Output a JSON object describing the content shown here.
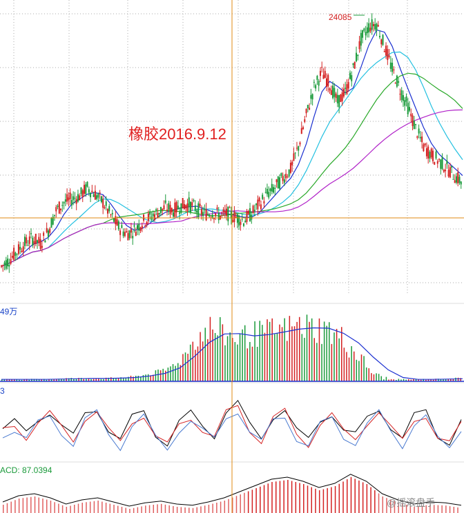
{
  "annotation": "橡胶2016.9.12",
  "peak_label": "24085",
  "volume_label": "49万",
  "osc_label": "3",
  "macd_label": "ACD: 87.0394",
  "watermark": "@摇滚盘手",
  "colors": {
    "up": "#d42020",
    "down": "#1a9a3a",
    "ma_fast": "#1a2fd0",
    "ma_mid": "#22c0e0",
    "ma_slow": "#28a828",
    "ma_long": "#b020c8",
    "crosshair": "#e08a10",
    "grid": "#aaaaaa"
  },
  "chart_data": [
    {
      "type": "candlestick",
      "title": "",
      "annotations": [
        "橡胶2016.9.12",
        "24085"
      ],
      "series": [
        {
          "name": "",
          "values": [
            9.2,
            9.6,
            10.1,
            10.6,
            10.9,
            10.6,
            11.4,
            12.6,
            13.1,
            13.3,
            13.5,
            14.0,
            13.6,
            13.1,
            12.3,
            11.6,
            11.2,
            11.4,
            11.9,
            12.2,
            12.5,
            12.8,
            12.6,
            12.9,
            13.0,
            12.7,
            12.4,
            12.5,
            12.3,
            12.4,
            12.2,
            12.0,
            12.4,
            13.0,
            13.6,
            14.0,
            14.6,
            15.1,
            16.5,
            18.4,
            20.1,
            21.0,
            20.3,
            19.2,
            19.8,
            21.2,
            23.0,
            23.8,
            24.0,
            22.6,
            21.2,
            20.0,
            18.9,
            17.6,
            16.5,
            16.0,
            15.6,
            15.2,
            14.7,
            14.3
          ]
        }
      ],
      "peak": 24085
    },
    {
      "type": "bar",
      "title": "",
      "annotations": [
        "49万"
      ],
      "series": [
        {
          "name": "",
          "values": [
            0.2,
            0.2,
            0.2,
            0.2,
            0.3,
            0.3,
            0.3,
            0.3,
            0.4,
            0.5,
            0.8,
            1.2,
            2.2,
            4.5,
            5.6,
            4.8,
            4.6,
            4.9,
            5.2,
            5.4,
            5.8,
            5.6,
            5.3,
            4.2,
            2.6,
            0.8,
            0.2,
            0.2,
            0.2,
            0.2,
            0.3,
            0.3
          ]
        }
      ]
    },
    {
      "type": "line",
      "title": "",
      "annotations": [
        "3"
      ],
      "series": [
        {
          "name": "",
          "values": [
            48,
            52,
            45,
            55,
            60,
            50,
            42,
            58,
            62,
            48,
            40,
            55,
            60,
            45,
            38,
            52,
            58,
            50,
            44,
            60,
            65,
            50,
            42,
            57,
            61,
            46,
            40,
            54,
            59,
            47,
            43,
            55,
            62,
            50,
            41,
            56,
            60,
            44,
            39,
            53
          ]
        }
      ]
    },
    {
      "type": "bar",
      "title": "",
      "annotations": [
        "ACD: 87.0394"
      ],
      "series": [
        {
          "name": "",
          "values": [
            20,
            35,
            40,
            30,
            15,
            25,
            30,
            20,
            10,
            18,
            22,
            15,
            12,
            20,
            30,
            45,
            60,
            75,
            80,
            70,
            55,
            65,
            87,
            70,
            40,
            25,
            15,
            20,
            18,
            12
          ]
        }
      ]
    }
  ]
}
